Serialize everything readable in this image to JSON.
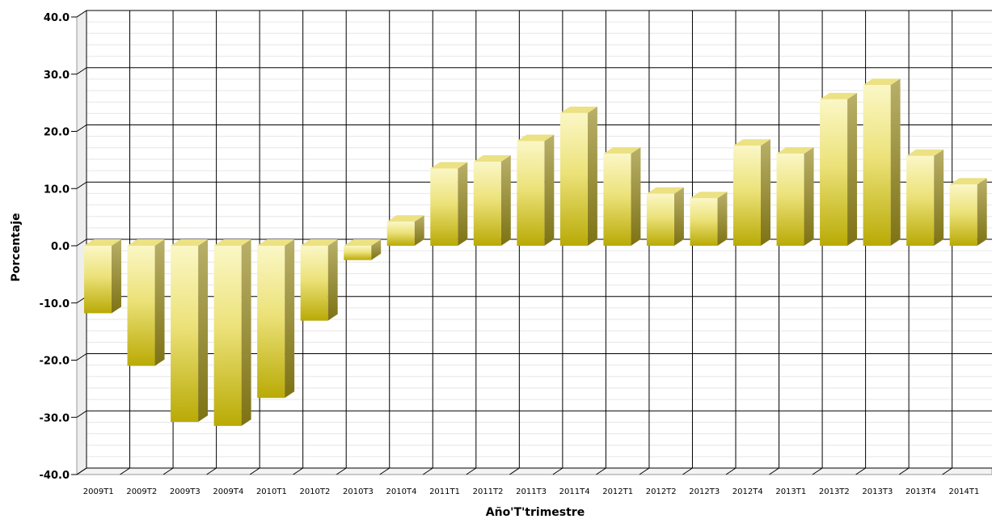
{
  "chart_data": {
    "type": "bar",
    "style": "3d",
    "xlabel": "Año'T'trimestre",
    "ylabel": "Porcentaje",
    "ylim": [
      -40,
      40
    ],
    "yticks": [
      "40.0",
      "30.0",
      "20.0",
      "10.0",
      "0.0",
      "-10.0",
      "-20.0",
      "-30.0",
      "-40.0"
    ],
    "categories": [
      "2009T1",
      "2009T2",
      "2009T3",
      "2009T4",
      "2010T1",
      "2010T2",
      "2010T3",
      "2010T4",
      "2011T1",
      "2011T2",
      "2011T3",
      "2011T4",
      "2012T1",
      "2012T2",
      "2012T3",
      "2012T4",
      "2013T1",
      "2013T2",
      "2013T3",
      "2013T4",
      "2014T1"
    ],
    "values": [
      -11.8,
      -21.0,
      -30.8,
      -31.5,
      -26.6,
      -13.1,
      -2.5,
      4.2,
      13.5,
      14.7,
      18.3,
      23.2,
      16.1,
      9.1,
      8.3,
      17.5,
      16.1,
      25.6,
      28.1,
      15.7,
      10.7
    ],
    "grid": true,
    "legend": "none",
    "colors": {
      "bar_light": "#f7f1a6",
      "bar_dark": "#b8a800",
      "bar_top": "#ece183",
      "bar_side": "#8f8419",
      "gridline": "#000000",
      "minor_gridline": "#e6e6e6",
      "wall": "#eeeeee"
    }
  }
}
